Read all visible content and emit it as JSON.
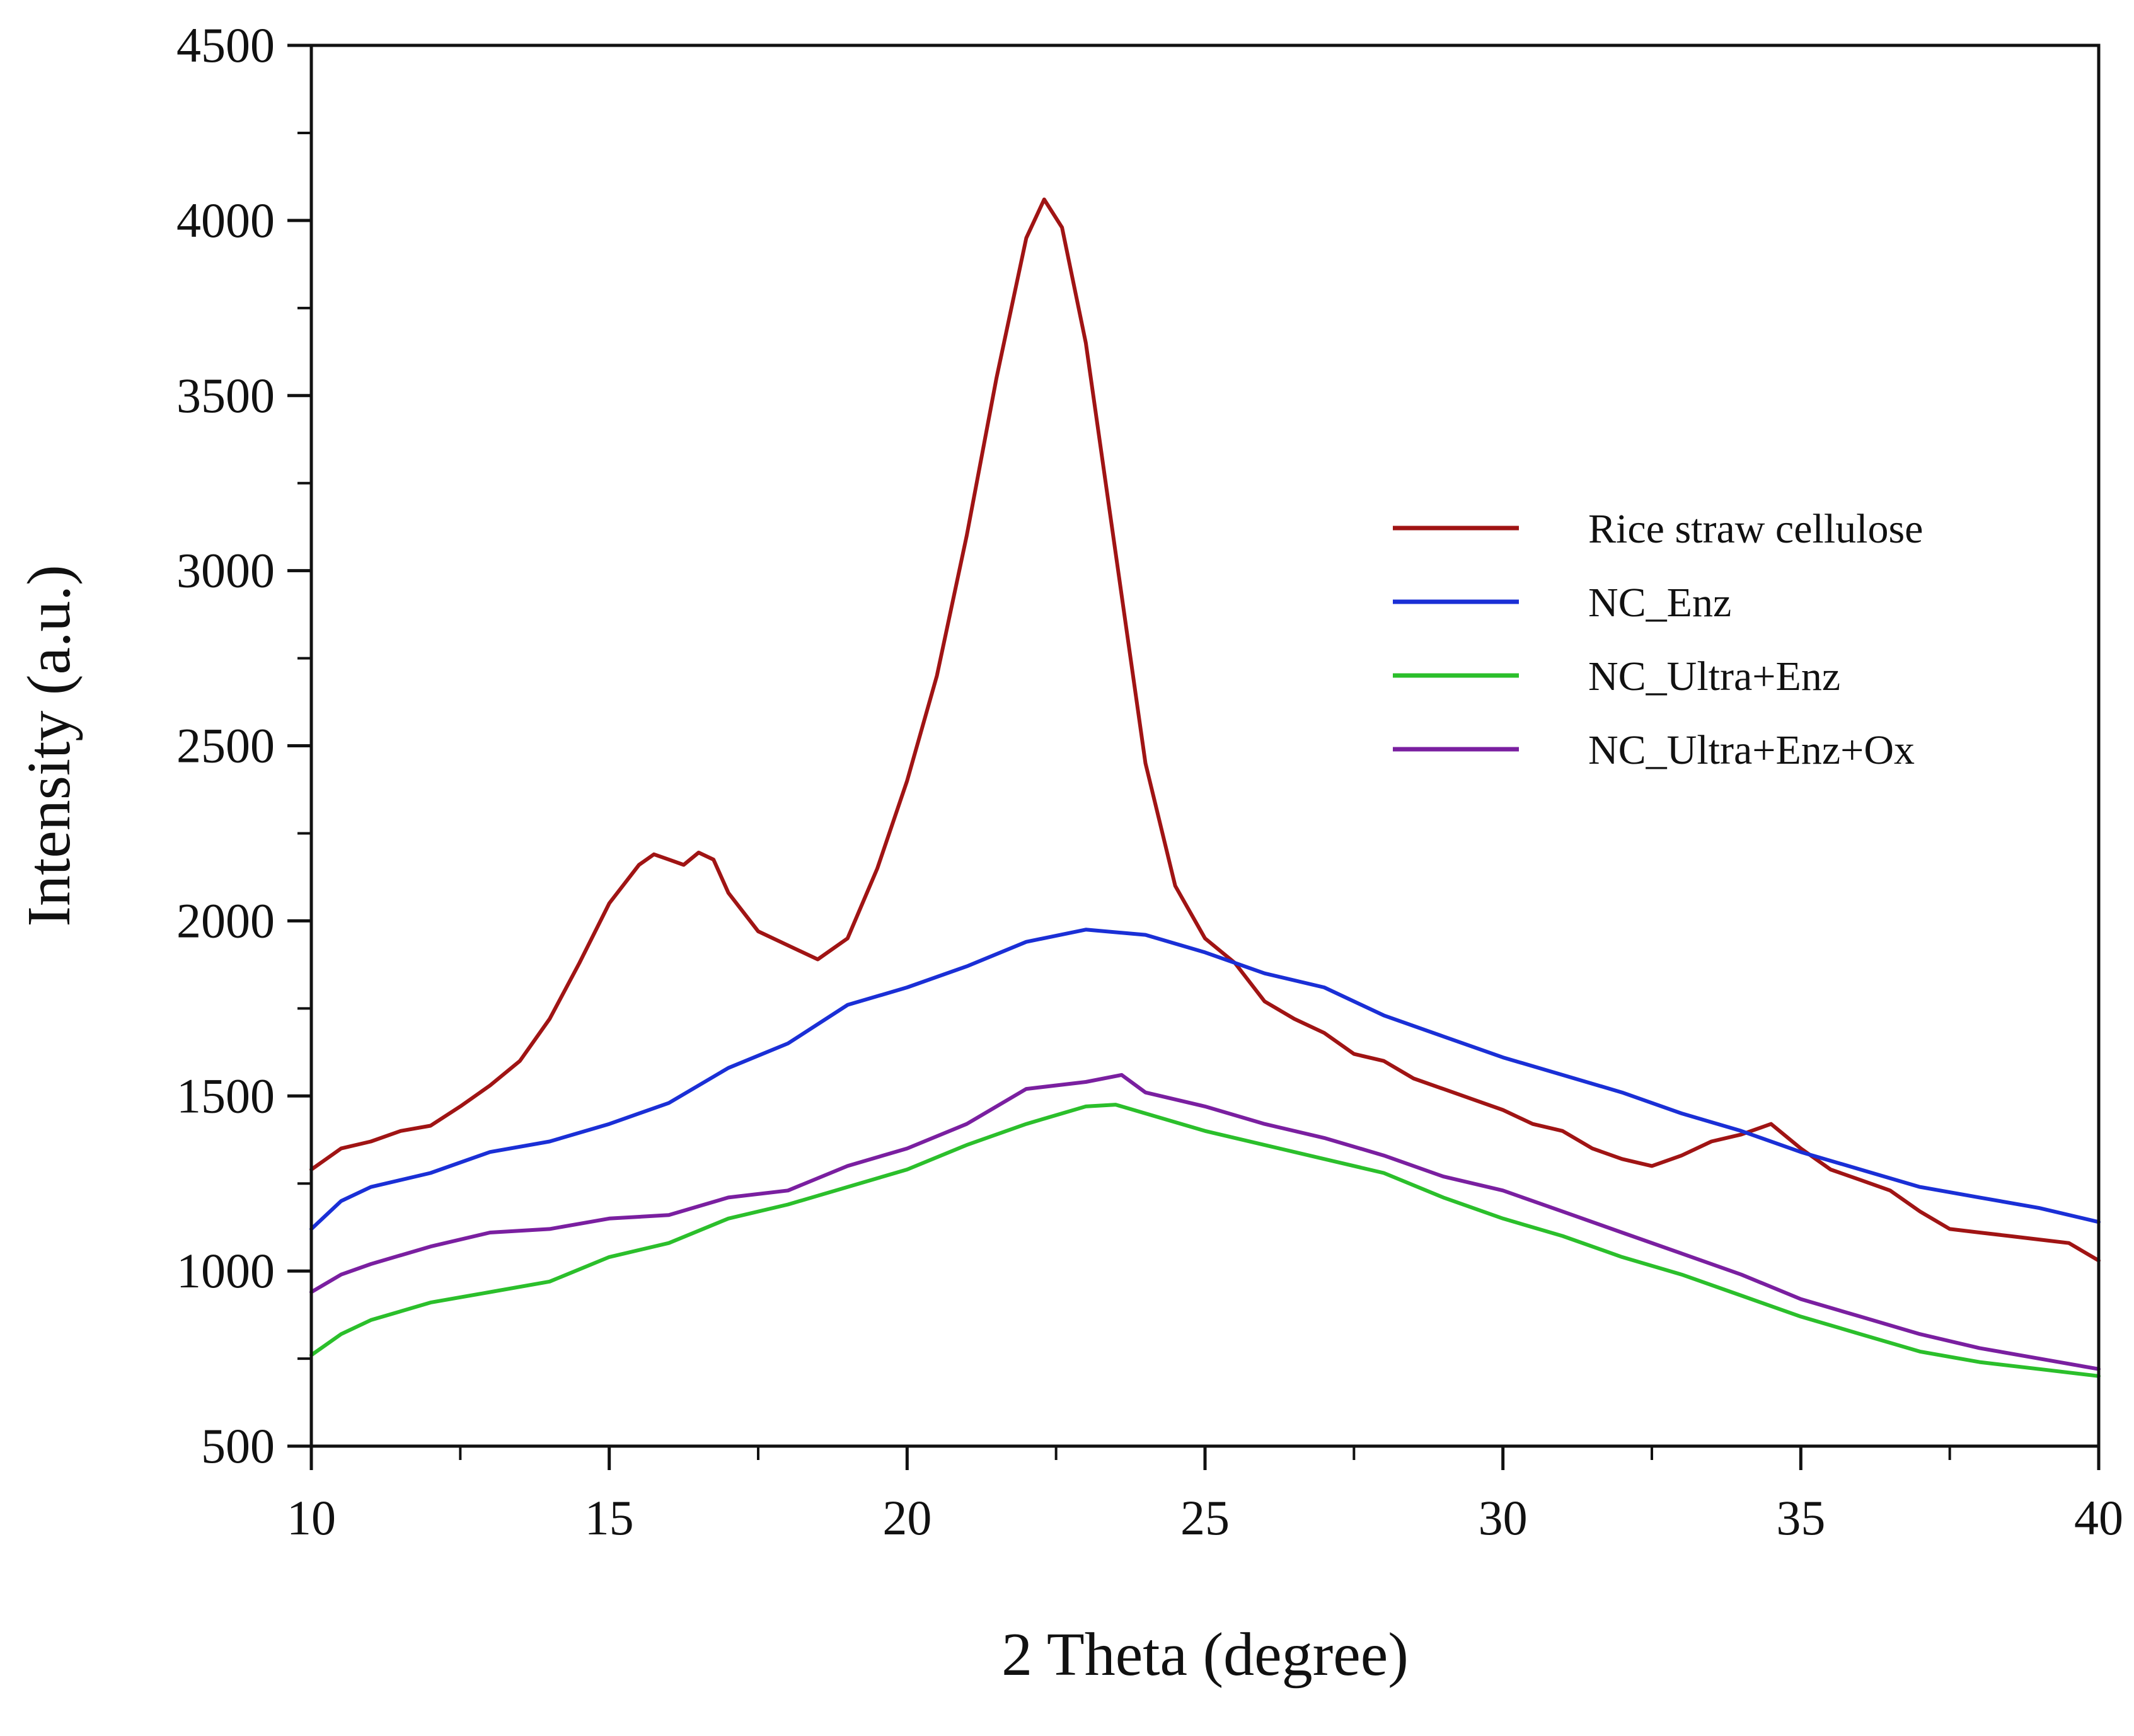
{
  "chart_data": {
    "type": "line",
    "title": "",
    "xlabel": "2 Theta (degree)",
    "ylabel": "Intensity (a.u.)",
    "xlim": [
      10,
      40
    ],
    "ylim": [
      500,
      4500
    ],
    "xticks": [
      10,
      15,
      20,
      25,
      30,
      35,
      40
    ],
    "yticks": [
      500,
      1000,
      1500,
      2000,
      2500,
      3000,
      3500,
      4000,
      4500
    ],
    "legend_position": "center-right",
    "grid": false,
    "series": [
      {
        "name": "Rice straw cellulose",
        "color": "#a01414",
        "points": [
          [
            10,
            1290
          ],
          [
            10.5,
            1350
          ],
          [
            11,
            1370
          ],
          [
            11.5,
            1400
          ],
          [
            12,
            1415
          ],
          [
            12.5,
            1470
          ],
          [
            13,
            1530
          ],
          [
            13.5,
            1600
          ],
          [
            14,
            1720
          ],
          [
            14.5,
            1880
          ],
          [
            15,
            2050
          ],
          [
            15.5,
            2160
          ],
          [
            15.75,
            2190
          ],
          [
            16,
            2175
          ],
          [
            16.25,
            2160
          ],
          [
            16.5,
            2195
          ],
          [
            16.75,
            2175
          ],
          [
            17,
            2080
          ],
          [
            17.5,
            1970
          ],
          [
            18,
            1930
          ],
          [
            18.5,
            1890
          ],
          [
            19,
            1950
          ],
          [
            19.5,
            2150
          ],
          [
            20,
            2400
          ],
          [
            20.5,
            2700
          ],
          [
            21,
            3100
          ],
          [
            21.5,
            3550
          ],
          [
            22,
            3950
          ],
          [
            22.3,
            4060
          ],
          [
            22.6,
            3980
          ],
          [
            23,
            3650
          ],
          [
            23.5,
            3050
          ],
          [
            24,
            2450
          ],
          [
            24.5,
            2100
          ],
          [
            25,
            1950
          ],
          [
            25.5,
            1880
          ],
          [
            26,
            1770
          ],
          [
            26.5,
            1720
          ],
          [
            27,
            1680
          ],
          [
            27.5,
            1620
          ],
          [
            28,
            1600
          ],
          [
            28.5,
            1550
          ],
          [
            29,
            1520
          ],
          [
            29.5,
            1490
          ],
          [
            30,
            1460
          ],
          [
            30.5,
            1420
          ],
          [
            31,
            1400
          ],
          [
            31.5,
            1350
          ],
          [
            32,
            1320
          ],
          [
            32.5,
            1300
          ],
          [
            33,
            1330
          ],
          [
            33.5,
            1370
          ],
          [
            34,
            1390
          ],
          [
            34.5,
            1420
          ],
          [
            35,
            1350
          ],
          [
            35.5,
            1290
          ],
          [
            36,
            1260
          ],
          [
            36.5,
            1230
          ],
          [
            37,
            1170
          ],
          [
            37.5,
            1120
          ],
          [
            38,
            1110
          ],
          [
            38.5,
            1100
          ],
          [
            39,
            1090
          ],
          [
            39.5,
            1080
          ],
          [
            40,
            1030
          ]
        ]
      },
      {
        "name": "NC_Enz",
        "color": "#1a2fd6",
        "points": [
          [
            10,
            1120
          ],
          [
            10.5,
            1200
          ],
          [
            11,
            1240
          ],
          [
            12,
            1280
          ],
          [
            13,
            1340
          ],
          [
            14,
            1370
          ],
          [
            15,
            1420
          ],
          [
            16,
            1480
          ],
          [
            17,
            1580
          ],
          [
            18,
            1650
          ],
          [
            19,
            1760
          ],
          [
            20,
            1810
          ],
          [
            21,
            1870
          ],
          [
            22,
            1940
          ],
          [
            23,
            1975
          ],
          [
            24,
            1960
          ],
          [
            25,
            1910
          ],
          [
            26,
            1850
          ],
          [
            27,
            1810
          ],
          [
            28,
            1730
          ],
          [
            29,
            1670
          ],
          [
            30,
            1610
          ],
          [
            31,
            1560
          ],
          [
            32,
            1510
          ],
          [
            33,
            1450
          ],
          [
            34,
            1400
          ],
          [
            35,
            1340
          ],
          [
            36,
            1290
          ],
          [
            37,
            1240
          ],
          [
            38,
            1210
          ],
          [
            39,
            1180
          ],
          [
            40,
            1140
          ]
        ]
      },
      {
        "name": "NC_Ultra+Enz",
        "color": "#2bbf2b",
        "points": [
          [
            10,
            760
          ],
          [
            10.5,
            820
          ],
          [
            11,
            860
          ],
          [
            12,
            910
          ],
          [
            13,
            940
          ],
          [
            14,
            970
          ],
          [
            15,
            1040
          ],
          [
            16,
            1080
          ],
          [
            17,
            1150
          ],
          [
            18,
            1190
          ],
          [
            19,
            1240
          ],
          [
            20,
            1290
          ],
          [
            21,
            1360
          ],
          [
            22,
            1420
          ],
          [
            23,
            1470
          ],
          [
            23.5,
            1475
          ],
          [
            24,
            1450
          ],
          [
            25,
            1400
          ],
          [
            26,
            1360
          ],
          [
            27,
            1320
          ],
          [
            28,
            1280
          ],
          [
            29,
            1210
          ],
          [
            30,
            1150
          ],
          [
            31,
            1100
          ],
          [
            32,
            1040
          ],
          [
            33,
            990
          ],
          [
            34,
            930
          ],
          [
            35,
            870
          ],
          [
            36,
            820
          ],
          [
            37,
            770
          ],
          [
            38,
            740
          ],
          [
            39,
            720
          ],
          [
            40,
            700
          ]
        ]
      },
      {
        "name": "NC_Ultra+Enz+Ox",
        "color": "#7a1fa0",
        "points": [
          [
            10,
            940
          ],
          [
            10.5,
            990
          ],
          [
            11,
            1020
          ],
          [
            12,
            1070
          ],
          [
            13,
            1110
          ],
          [
            14,
            1120
          ],
          [
            15,
            1150
          ],
          [
            16,
            1160
          ],
          [
            17,
            1210
          ],
          [
            18,
            1230
          ],
          [
            19,
            1300
          ],
          [
            20,
            1350
          ],
          [
            21,
            1420
          ],
          [
            22,
            1520
          ],
          [
            23,
            1540
          ],
          [
            23.6,
            1560
          ],
          [
            24,
            1510
          ],
          [
            25,
            1470
          ],
          [
            26,
            1420
          ],
          [
            27,
            1380
          ],
          [
            28,
            1330
          ],
          [
            29,
            1270
          ],
          [
            30,
            1230
          ],
          [
            31,
            1170
          ],
          [
            32,
            1110
          ],
          [
            33,
            1050
          ],
          [
            34,
            990
          ],
          [
            35,
            920
          ],
          [
            36,
            870
          ],
          [
            37,
            820
          ],
          [
            38,
            780
          ],
          [
            39,
            750
          ],
          [
            40,
            720
          ]
        ]
      }
    ]
  }
}
